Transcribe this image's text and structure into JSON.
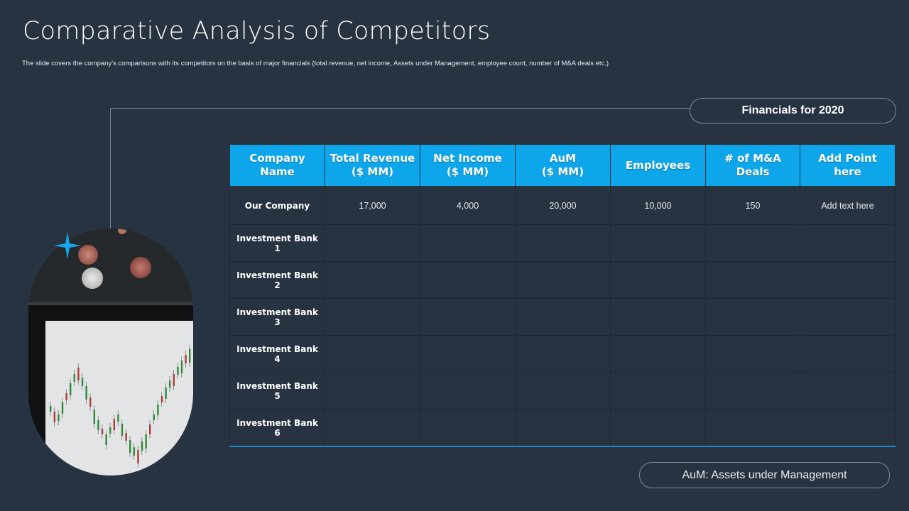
{
  "slide": {
    "title": "Comparative Analysis of Competitors",
    "subtitle": "The slide covers the company's comparisons with its competitors on the basis of major financials (total revenue, net income, Assets under Management,  employee count, number  of M&A deals etc.)",
    "financials_label": "Financials for 2020",
    "footnote": "AuM: Assets under Management"
  },
  "colors": {
    "background": "#283341",
    "header_fill": "#0ea6ea",
    "accent_line": "#1e8fcc"
  },
  "table": {
    "headers": [
      [
        "Company",
        "Name"
      ],
      [
        "Total Revenue",
        "($ MM)"
      ],
      [
        "Net Income",
        "($ MM)"
      ],
      [
        "AuM",
        "($ MM)"
      ],
      [
        "Employees",
        ""
      ],
      [
        "# of M&A Deals",
        ""
      ],
      [
        "Add Point here",
        ""
      ]
    ],
    "rows": [
      [
        "Our Company",
        "17,000",
        "4,000",
        "20,000",
        "10,000",
        "150",
        "Add text here"
      ],
      [
        "Investment Bank 1",
        "",
        "",
        "",
        "",
        "",
        ""
      ],
      [
        "Investment Bank 2",
        "",
        "",
        "",
        "",
        "",
        ""
      ],
      [
        "Investment Bank 3",
        "",
        "",
        "",
        "",
        "",
        ""
      ],
      [
        "Investment Bank 4",
        "",
        "",
        "",
        "",
        "",
        ""
      ],
      [
        "Investment Bank 5",
        "",
        "",
        "",
        "",
        "",
        ""
      ],
      [
        "Investment Bank 6",
        "",
        "",
        "",
        "",
        "",
        ""
      ]
    ]
  },
  "icons": {
    "sparkle": "four-point-star-icon",
    "photo": "stock-chart-photo"
  }
}
